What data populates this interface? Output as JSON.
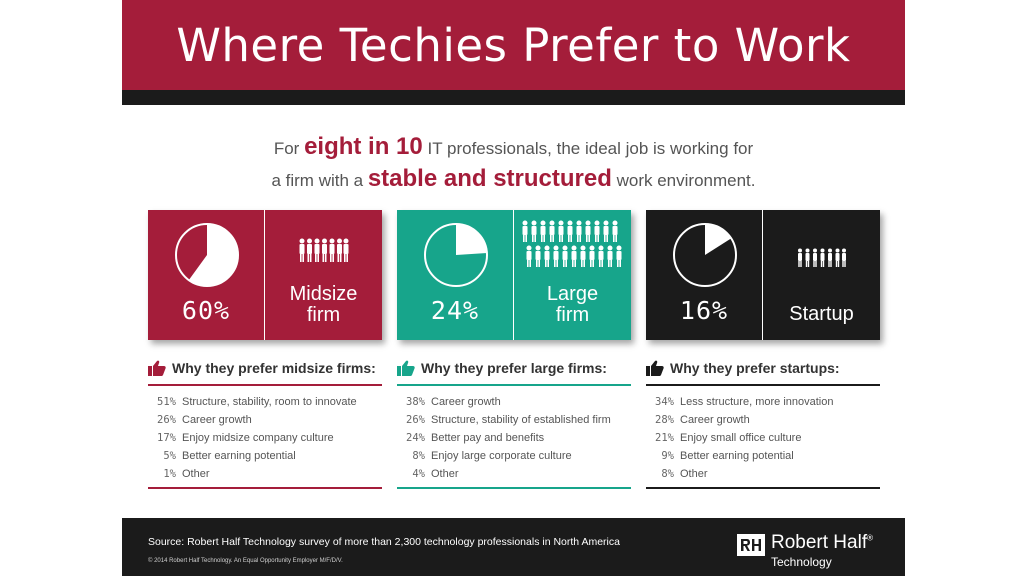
{
  "title": "Where Techies Prefer to Work",
  "intro": {
    "line1_pre": "For ",
    "line1_hl": "eight in 10",
    "line1_post": " IT professionals, the ideal job is working for",
    "line2_pre": "a firm with a ",
    "line2_hl": "stable and structured",
    "line2_post": " work environment."
  },
  "colors": {
    "midsize": "#a41d3a",
    "large": "#17a58b",
    "startup": "#1b1b1b",
    "banner": "#a41d3a"
  },
  "cards": [
    {
      "percent": "60%",
      "share": 0.6,
      "label_line1": "Midsize",
      "label_line2": "firm",
      "icon": "people-icon"
    },
    {
      "percent": "24%",
      "share": 0.24,
      "label_line1": "Large",
      "label_line2": "firm",
      "icon": "crowd-icon"
    },
    {
      "percent": "16%",
      "share": 0.16,
      "label_line1": "Startup",
      "label_line2": "",
      "icon": "small-team-icon"
    }
  ],
  "reasons": [
    {
      "heading": "Why they prefer midsize firms:",
      "icon": "thumbs-up-icon",
      "items": [
        {
          "value": "51%",
          "text": "Structure, stability, room to innovate"
        },
        {
          "value": "26%",
          "text": "Career growth"
        },
        {
          "value": "17%",
          "text": "Enjoy midsize company culture"
        },
        {
          "value": "5%",
          "text": "Better earning potential"
        },
        {
          "value": "1%",
          "text": "Other"
        }
      ]
    },
    {
      "heading": "Why they prefer large firms:",
      "icon": "thumbs-up-icon",
      "items": [
        {
          "value": "38%",
          "text": "Career growth"
        },
        {
          "value": "26%",
          "text": "Structure, stability of established firm"
        },
        {
          "value": "24%",
          "text": "Better pay and benefits"
        },
        {
          "value": "8%",
          "text": "Enjoy large corporate culture"
        },
        {
          "value": "4%",
          "text": "Other"
        }
      ]
    },
    {
      "heading": "Why they prefer startups:",
      "icon": "thumbs-up-icon",
      "items": [
        {
          "value": "34%",
          "text": "Less structure, more innovation"
        },
        {
          "value": "28%",
          "text": "Career growth"
        },
        {
          "value": "21%",
          "text": "Enjoy small office culture"
        },
        {
          "value": "9%",
          "text": "Better earning potential"
        },
        {
          "value": "8%",
          "text": "Other"
        }
      ]
    }
  ],
  "footer": {
    "source": "Source: Robert Half Technology survey of more than 2,300 technology professionals in North America",
    "copyright": "© 2014 Robert Half Technology. An Equal Opportunity Employer M/F/D/V.",
    "logo_name": "Robert Half",
    "logo_reg": "®",
    "logo_sub": "Technology"
  }
}
